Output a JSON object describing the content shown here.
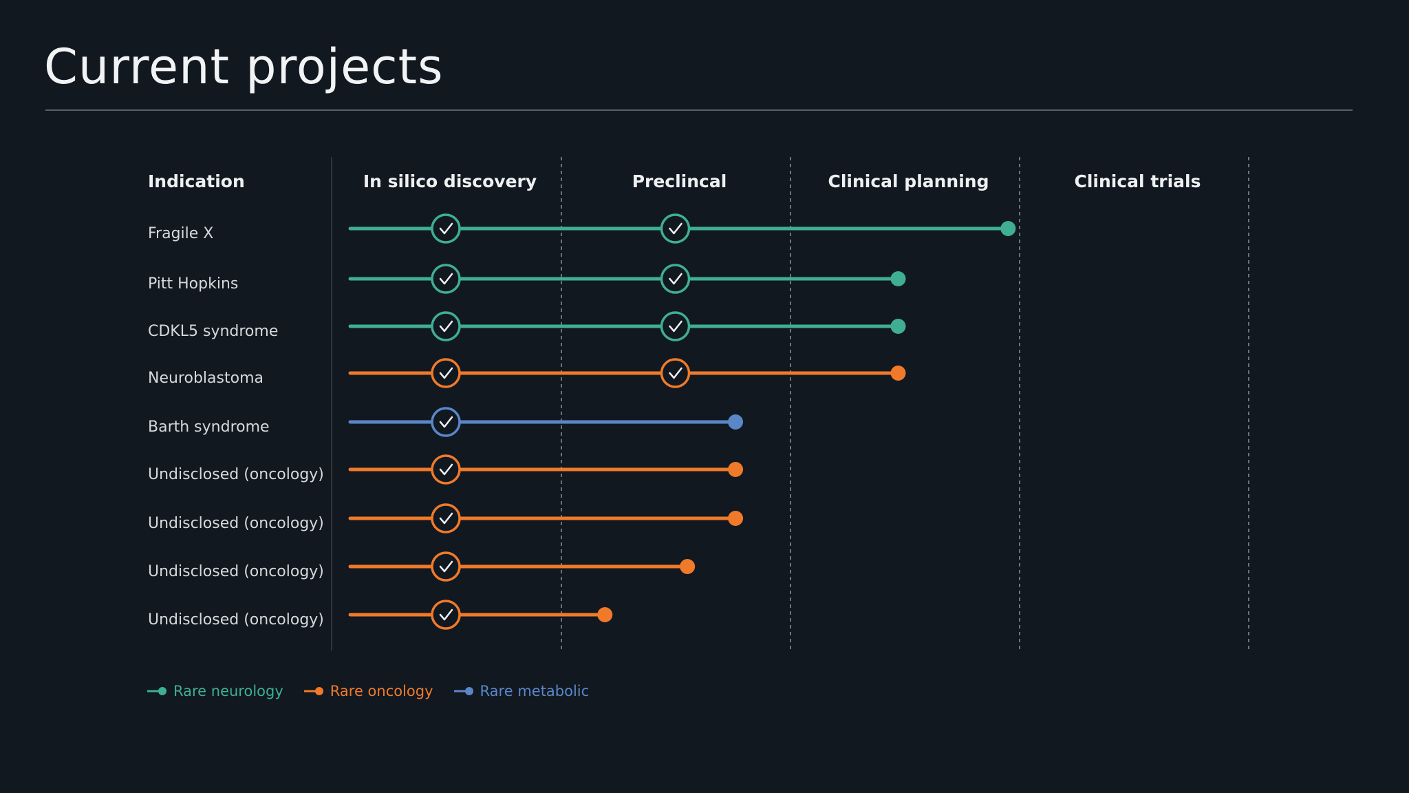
{
  "title": "Current projects",
  "chart_data": {
    "type": "timeline",
    "columns": [
      "In silico discovery",
      "Preclincal",
      "Clinical planning",
      "Clinical trials"
    ],
    "indication_header": "Indication",
    "series": [
      {
        "name": "Rare neurology",
        "color": "#3fae94"
      },
      {
        "name": "Rare oncology",
        "color": "#f07a2a"
      },
      {
        "name": "Rare metabolic",
        "color": "#5b87c9"
      }
    ],
    "rows": [
      {
        "label": "Fragile X",
        "category": "Rare neurology",
        "progress": 2.95,
        "completed": [
          1,
          2
        ]
      },
      {
        "label": "Pitt Hopkins",
        "category": "Rare neurology",
        "progress": 2.47,
        "completed": [
          1,
          2
        ]
      },
      {
        "label": "CDKL5 syndrome",
        "category": "Rare neurology",
        "progress": 2.47,
        "completed": [
          1,
          2
        ]
      },
      {
        "label": "Neuroblastoma",
        "category": "Rare oncology",
        "progress": 2.47,
        "completed": [
          1,
          2
        ]
      },
      {
        "label": "Barth syndrome",
        "category": "Rare metabolic",
        "progress": 1.76,
        "completed": [
          1
        ]
      },
      {
        "label": "Undisclosed (oncology)",
        "category": "Rare oncology",
        "progress": 1.76,
        "completed": [
          1
        ]
      },
      {
        "label": "Undisclosed (oncology)",
        "category": "Rare oncology",
        "progress": 1.76,
        "completed": [
          1
        ]
      },
      {
        "label": "Undisclosed (oncology)",
        "category": "Rare oncology",
        "progress": 1.55,
        "completed": [
          1
        ]
      },
      {
        "label": "Undisclosed (oncology)",
        "category": "Rare oncology",
        "progress": 1.19,
        "completed": [
          1
        ]
      }
    ],
    "legend_position": "bottom-left"
  }
}
